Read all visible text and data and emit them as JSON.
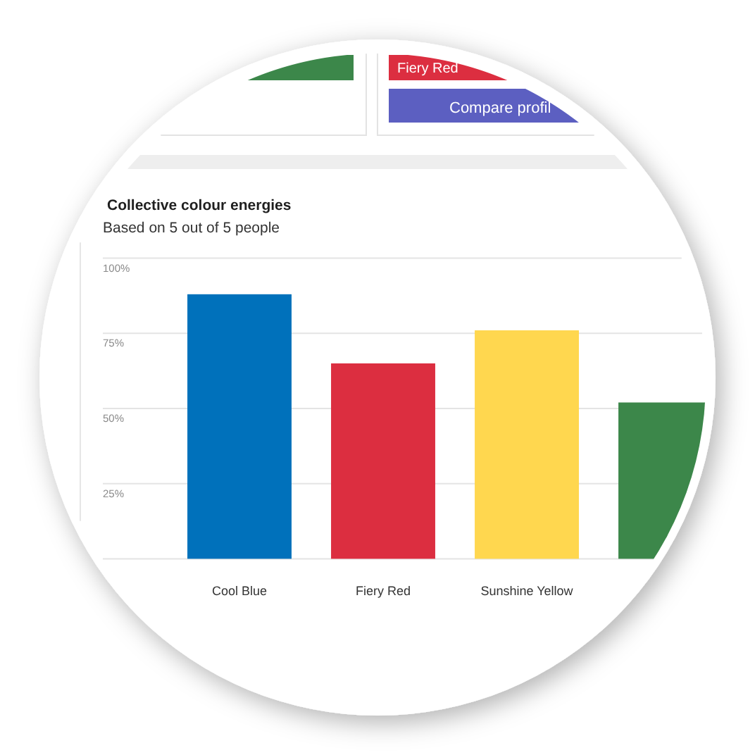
{
  "chart_data": [
    {
      "type": "other",
      "annotations": [
        "Fiery Red",
        "Compare profil"
      ]
    },
    {
      "type": "bar",
      "title": "Collective colour energies",
      "subtitle": "Based on 5 out of 5 people",
      "categories": [
        "Cool Blue",
        "Fiery Red",
        "Sunshine Yellow",
        null
      ],
      "values": [
        88,
        65,
        76,
        52
      ],
      "colors": [
        "#0071bb",
        "#dc2e40",
        "#ffd74f",
        "#3c874a"
      ],
      "ylim": [
        0,
        100
      ],
      "yticks": [
        {
          "value": 0,
          "label": null
        },
        {
          "value": 25,
          "label": "25%"
        },
        {
          "value": 50,
          "label": "50%"
        },
        {
          "value": 75,
          "label": "75%"
        },
        {
          "value": 100,
          "label": "100%"
        }
      ],
      "grid": "y"
    }
  ]
}
